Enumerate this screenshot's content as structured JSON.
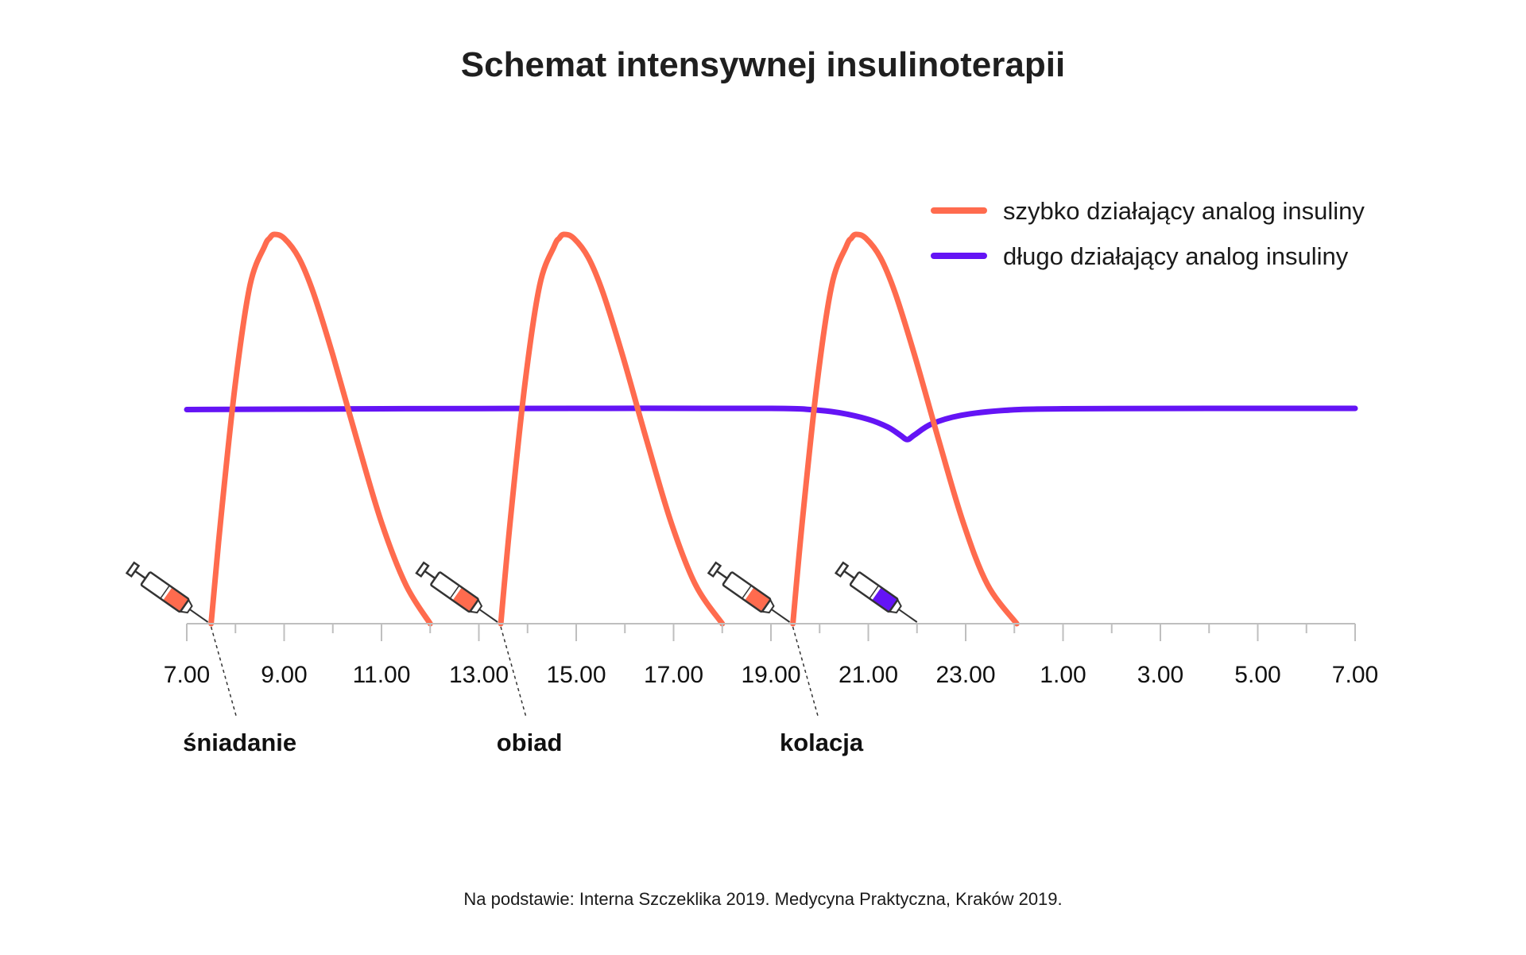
{
  "colors": {
    "rapid": "#ff6b4e",
    "long": "#6414f5",
    "axis": "#bfbfbf",
    "text": "#1a1a1a"
  },
  "chart_data": {
    "type": "line",
    "title": "Schemat intensywnej insulinoterapii",
    "xlabel": "",
    "ylabel": "",
    "x_unit": "hours since 7:00",
    "xlim": [
      0,
      24
    ],
    "ylim": [
      0,
      1
    ],
    "x_tick_labels": [
      "7.00",
      "9.00",
      "11.00",
      "13.00",
      "15.00",
      "17.00",
      "19.00",
      "21.00",
      "23.00",
      "1.00",
      "3.00",
      "5.00",
      "7.00"
    ],
    "minor_ticks_per_interval": 2,
    "grid": false,
    "legend_position": "top-right",
    "legend": [
      {
        "label": "szybko działający analog insuliny",
        "color": "#ff6b4e"
      },
      {
        "label": "długo działający analog insuliny",
        "color": "#6414f5"
      }
    ],
    "series": [
      {
        "name": "szybko działający analog insuliny",
        "color": "#ff6b4e",
        "x": [
          0.5,
          0.7,
          1.0,
          1.3,
          1.6,
          1.7,
          1.8,
          2.0,
          2.3,
          2.6,
          3.0,
          3.5,
          4.0,
          4.5,
          5.0
        ],
        "y": [
          0.0,
          0.27,
          0.62,
          0.87,
          0.97,
          0.99,
          1.0,
          0.99,
          0.94,
          0.85,
          0.69,
          0.47,
          0.26,
          0.1,
          0.0
        ]
      },
      {
        "name": "szybko działający analog insuliny",
        "color": "#ff6b4e",
        "x": [
          6.45,
          6.65,
          6.95,
          7.25,
          7.55,
          7.65,
          7.75,
          7.95,
          8.25,
          8.55,
          8.95,
          9.45,
          9.95,
          10.45,
          11.0
        ],
        "y": [
          0.0,
          0.27,
          0.62,
          0.87,
          0.97,
          0.99,
          1.0,
          0.99,
          0.94,
          0.85,
          0.69,
          0.47,
          0.26,
          0.1,
          0.0
        ]
      },
      {
        "name": "szybko działający analog insuliny",
        "color": "#ff6b4e",
        "x": [
          12.45,
          12.65,
          12.95,
          13.25,
          13.55,
          13.65,
          13.75,
          13.95,
          14.25,
          14.55,
          14.95,
          15.45,
          15.95,
          16.45,
          17.05
        ],
        "y": [
          0.0,
          0.27,
          0.62,
          0.87,
          0.97,
          0.99,
          1.0,
          0.99,
          0.94,
          0.85,
          0.69,
          0.47,
          0.26,
          0.1,
          0.0
        ]
      },
      {
        "name": "długo działający analog insuliny",
        "color": "#6414f5",
        "x": [
          0,
          4,
          8,
          12,
          12.8,
          13.4,
          14.0,
          14.4,
          14.65,
          14.8,
          14.95,
          15.3,
          15.9,
          16.8,
          18,
          21,
          24
        ],
        "y": [
          0.55,
          0.552,
          0.553,
          0.553,
          0.55,
          0.542,
          0.525,
          0.505,
          0.485,
          0.473,
          0.485,
          0.513,
          0.535,
          0.548,
          0.552,
          0.553,
          0.553
        ]
      }
    ],
    "annotations": [
      {
        "label": "śniadanie",
        "x": 0.5,
        "injection": "szybko działający analog insuliny"
      },
      {
        "label": "obiad",
        "x": 6.45,
        "injection": "szybko działający analog insuliny"
      },
      {
        "label": "kolacja",
        "x": 12.45,
        "injection": "szybko działający analog insuliny"
      },
      {
        "label": "",
        "x": 15.0,
        "injection": "długo działający analog insuliny"
      }
    ]
  },
  "source_note": "Na podstawie: Interna Szczeklika 2019. Medycyna Praktyczna, Kraków 2019."
}
